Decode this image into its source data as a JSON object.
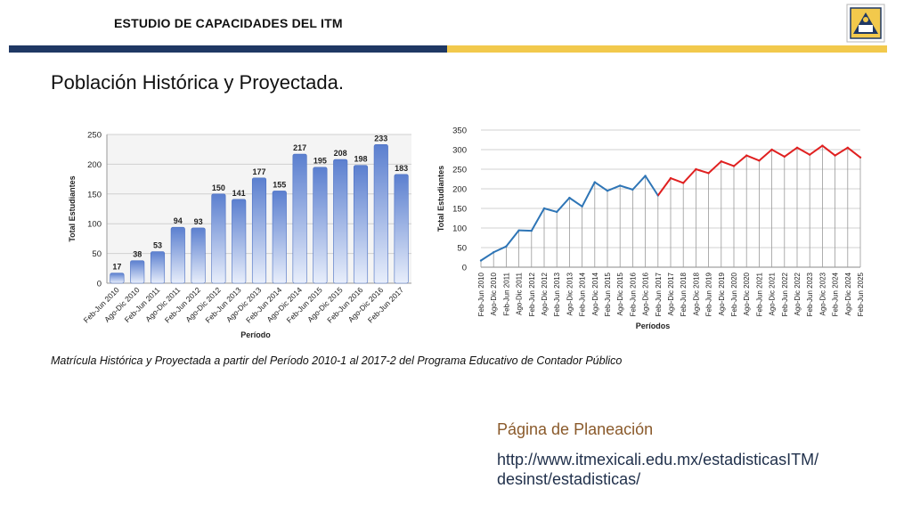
{
  "header": {
    "title": "ESTUDIO DE CAPACIDADES DEL ITM"
  },
  "page": {
    "title": "Población Histórica y Proyectada.",
    "caption": "Matrícula Histórica y Proyectada a partir del Período 2010-1 al 2017-2 del Programa Educativo de Contador Público"
  },
  "footer": {
    "label": "Página de Planeación",
    "url_line1": "http://www.itmexicali.edu.mx/estadisticasITM/",
    "url_line2": "desinst/estadisticas/"
  },
  "colors": {
    "brand_blue": "#1f3864",
    "brand_gold": "#f2c94c",
    "historic_line": "#2e75b6",
    "projected_line": "#e02020"
  },
  "chart_data": [
    {
      "type": "bar",
      "ylabel": "Total Estudiantes",
      "xlabel": "Período",
      "ylim": [
        0,
        250
      ],
      "yticks": [
        0,
        50,
        100,
        150,
        200,
        250
      ],
      "grid": true,
      "categories": [
        "Feb-Jun 2010",
        "Ago-Dic 2010",
        "Feb-Jun 2011",
        "Ago-Dic 2011",
        "Feb-Jun 2012",
        "Ago-Dic 2012",
        "Feb-Jun 2013",
        "Ago-Dic 2013",
        "Feb-Jun 2014",
        "Ago-Dic 2014",
        "Feb-Jun 2015",
        "Ago-Dic 2015",
        "Feb-Jun 2016",
        "Ago-Dic 2016",
        "Feb-Jun 2017"
      ],
      "values": [
        17,
        38,
        53,
        94,
        93,
        150,
        141,
        177,
        155,
        217,
        195,
        208,
        198,
        233,
        183
      ]
    },
    {
      "type": "line",
      "ylabel": "Total Estudiantes",
      "xlabel": "Períodos",
      "ylim": [
        0,
        350
      ],
      "yticks": [
        0,
        50,
        100,
        150,
        200,
        250,
        300,
        350
      ],
      "grid": true,
      "categories": [
        "Feb-Jun 2010",
        "Ago-Dic 2010",
        "Feb-Jun 2011",
        "Ago-Dic 2011",
        "Feb-Jun 2012",
        "Ago-Dic 2012",
        "Feb-Jun 2013",
        "Ago-Dic 2013",
        "Feb-Jun 2014",
        "Ago-Dic 2014",
        "Feb-Jun 2015",
        "Ago-Dic 2015",
        "Feb-Jun 2016",
        "Ago-Dic 2016",
        "Feb-Jun 2017",
        "Ago-Dic 2017",
        "Feb-Jun 2018",
        "Ago-Dic 2018",
        "Feb-Jun 2019",
        "Ago-Dic 2019",
        "Feb-Jun 2020",
        "Ago-Dic 2020",
        "Feb-Jun 2021",
        "Ago-Dic 2021",
        "Feb-Jun 2022",
        "Ago-Dic 2022",
        "Feb-Jun 2023",
        "Ago-Dic 2023",
        "Feb-Jun 2024",
        "Ago-Dic 2024",
        "Feb-Jun 2025"
      ],
      "values": [
        17,
        38,
        53,
        94,
        93,
        150,
        141,
        177,
        155,
        217,
        195,
        208,
        198,
        233,
        183,
        227,
        215,
        250,
        240,
        270,
        258,
        285,
        272,
        300,
        282,
        305,
        287,
        310,
        285,
        305,
        280
      ],
      "historic_count": 15
    }
  ]
}
